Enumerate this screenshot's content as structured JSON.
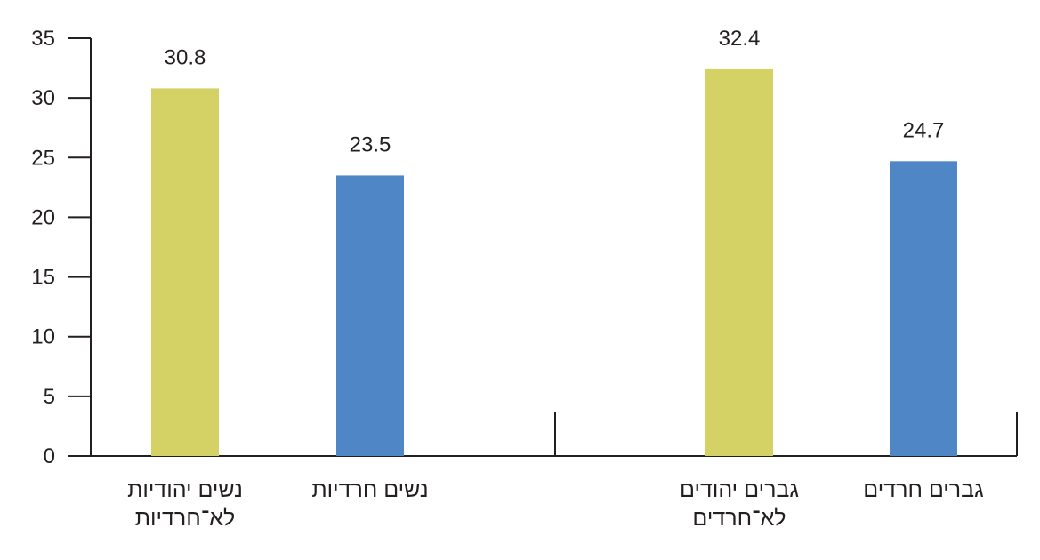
{
  "chart_data": {
    "type": "bar",
    "categories": [
      [
        "נשים יהודיות",
        "לא־חרדיות"
      ],
      [
        "נשים חרדיות"
      ],
      [
        "גברים יהודים",
        "לא־חרדים"
      ],
      [
        "גברים חרדים"
      ]
    ],
    "values": [
      30.8,
      23.5,
      32.4,
      24.7
    ],
    "value_labels": [
      "30.8",
      "23.5",
      "32.4",
      "24.7"
    ],
    "bar_colors": [
      "#d4d264",
      "#4f86c6",
      "#d4d264",
      "#4f86c6"
    ],
    "ylim": [
      0,
      35
    ],
    "yticks": [
      0,
      5,
      10,
      15,
      20,
      25,
      30,
      35
    ],
    "title": "",
    "xlabel": "",
    "ylabel": "",
    "grid": false,
    "axis_color": "#231f20"
  }
}
